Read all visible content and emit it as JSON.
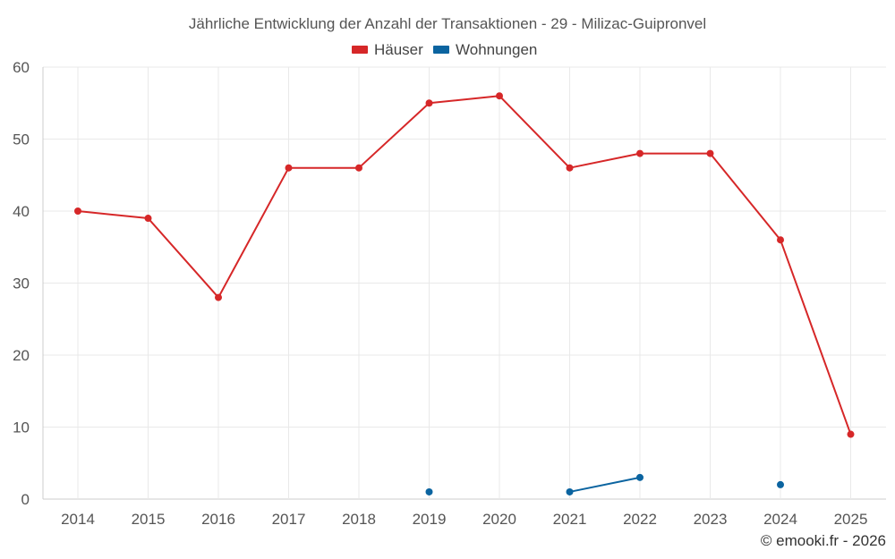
{
  "chart_data": {
    "type": "line",
    "title": "Jährliche Entwicklung der Anzahl der Transaktionen - 29 - Milizac-Guipronvel",
    "x": [
      2014,
      2015,
      2016,
      2017,
      2018,
      2019,
      2020,
      2021,
      2022,
      2023,
      2024,
      2025
    ],
    "ylim": [
      0,
      60
    ],
    "yticks": [
      0,
      10,
      20,
      30,
      40,
      50,
      60
    ],
    "grid": true,
    "legend_position": "top-center",
    "series": [
      {
        "name": "Häuser",
        "color": "#d62728",
        "values": [
          40,
          39,
          28,
          46,
          46,
          55,
          56,
          46,
          48,
          48,
          36,
          9
        ]
      },
      {
        "name": "Wohnungen",
        "color": "#0b64a0",
        "values": [
          null,
          null,
          null,
          null,
          null,
          1,
          null,
          1,
          3,
          null,
          2,
          null
        ]
      }
    ]
  },
  "credit": "© emooki.fr - 2026"
}
